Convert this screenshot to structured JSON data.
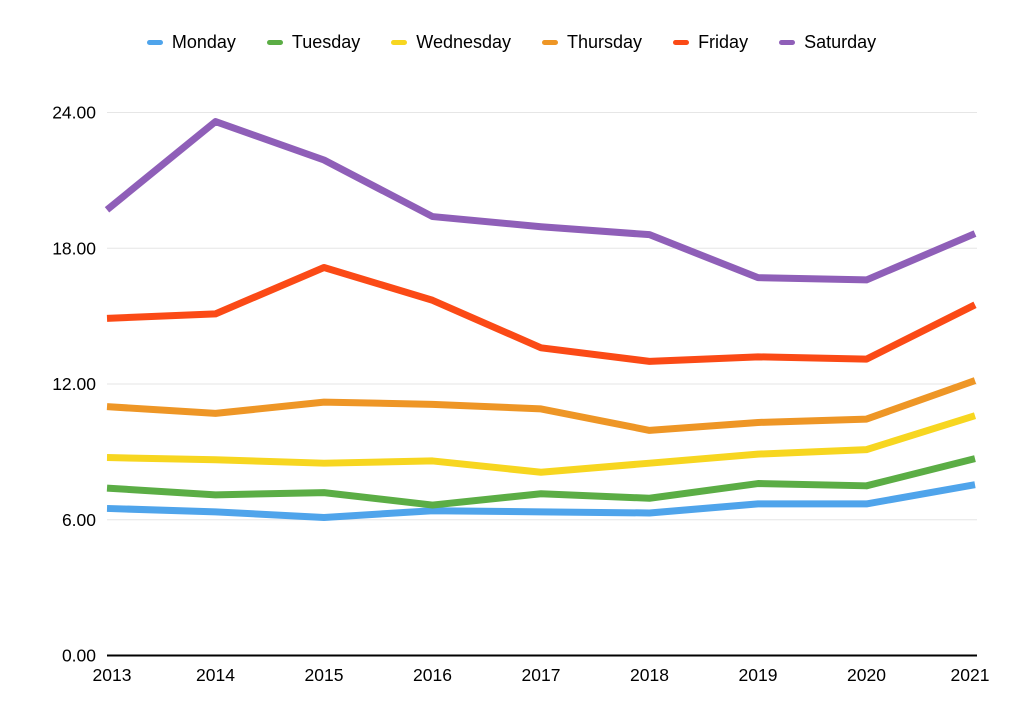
{
  "chart_data": {
    "type": "line",
    "title": "",
    "xlabel": "",
    "ylabel": "",
    "x": [
      "2013",
      "2014",
      "2015",
      "2016",
      "2017",
      "2018",
      "2019",
      "2020",
      "2021"
    ],
    "series": [
      {
        "name": "Monday",
        "color": "#4FA4EB",
        "values": [
          6.5,
          6.35,
          6.1,
          6.4,
          6.35,
          6.3,
          6.7,
          6.7,
          7.55
        ]
      },
      {
        "name": "Tuesday",
        "color": "#5BAD45",
        "values": [
          7.4,
          7.1,
          7.2,
          6.65,
          7.15,
          6.95,
          7.6,
          7.5,
          8.7
        ]
      },
      {
        "name": "Wednesday",
        "color": "#F7D620",
        "values": [
          8.75,
          8.65,
          8.5,
          8.6,
          8.1,
          8.5,
          8.9,
          9.1,
          10.6
        ]
      },
      {
        "name": "Thursday",
        "color": "#EE9626",
        "values": [
          11.0,
          10.7,
          11.2,
          11.1,
          10.9,
          9.95,
          10.3,
          10.45,
          12.15
        ]
      },
      {
        "name": "Friday",
        "color": "#FB4A16",
        "values": [
          14.9,
          15.1,
          17.15,
          15.7,
          13.6,
          13.0,
          13.2,
          13.1,
          15.5
        ]
      },
      {
        "name": "Saturday",
        "color": "#8F5FB8",
        "values": [
          19.7,
          23.6,
          21.9,
          19.4,
          18.95,
          18.6,
          16.7,
          16.6,
          18.65
        ]
      }
    ],
    "ylim": [
      0,
      24
    ],
    "yticks": [
      0,
      6,
      12,
      18,
      24
    ],
    "ytick_labels": [
      "0.00",
      "6.00",
      "12.00",
      "18.00",
      "24.00"
    ],
    "grid": "horizontal",
    "gridline_color": "#e6e6e6",
    "axis_color": "#000000",
    "text_color": "#000000",
    "background": "#ffffff",
    "legend_position": "top"
  }
}
